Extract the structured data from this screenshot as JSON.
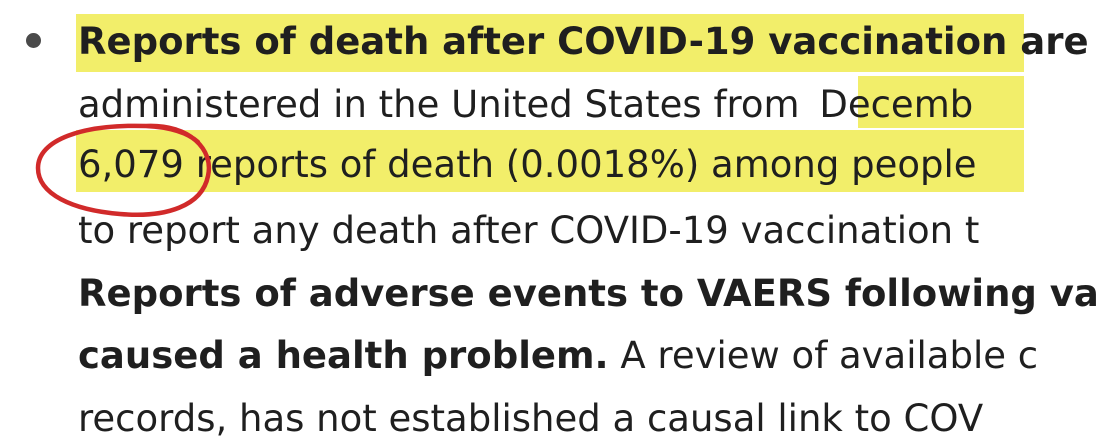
{
  "doc": {
    "line1": "Reports of death after COVID-19 vaccination are",
    "line2a": "administered in the United States from ",
    "line2b": "Decemb",
    "line3a": "6,079",
    "line3b": " reports of death (0.0018%) among people",
    "line4": "to report any death after COVID-19 vaccination t",
    "line5": "Reports of adverse events to VAERS following va",
    "line6a": "caused a health problem.",
    "line6b": " A review of available c",
    "line7": "records, has not established a causal link to COV"
  },
  "colors": {
    "highlight": "#f2ee6a",
    "annotation": "#d12a2a"
  }
}
